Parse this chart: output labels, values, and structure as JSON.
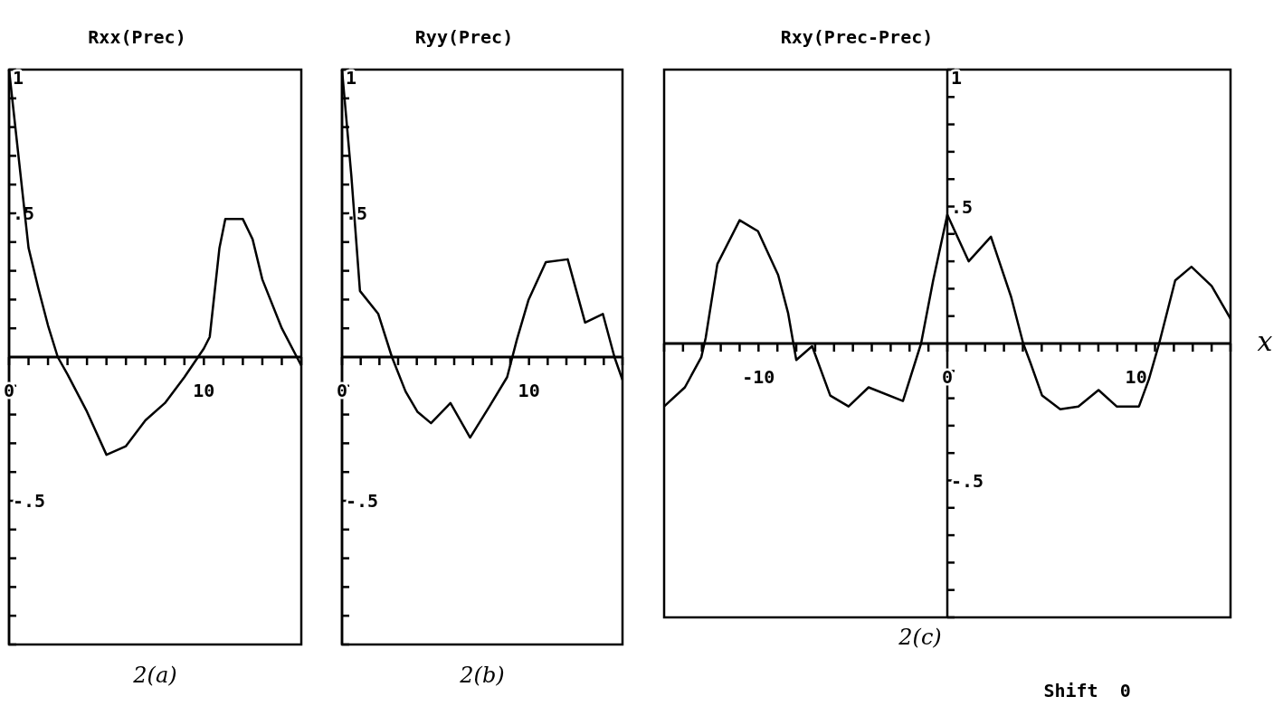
{
  "chart_data": [
    {
      "type": "line",
      "title": "Rxx(Prec)",
      "xlim": [
        0,
        15
      ],
      "ylim": [
        -1,
        1
      ],
      "xticks": [
        {
          "value": 0,
          "label": "0"
        },
        {
          "value": 1,
          "label": null
        },
        {
          "value": 2,
          "label": null
        },
        {
          "value": 3,
          "label": null
        },
        {
          "value": 4,
          "label": null
        },
        {
          "value": 5,
          "label": null
        },
        {
          "value": 6,
          "label": null
        },
        {
          "value": 7,
          "label": null
        },
        {
          "value": 8,
          "label": null
        },
        {
          "value": 9,
          "label": null
        },
        {
          "value": 10,
          "label": "10"
        },
        {
          "value": 11,
          "label": null
        },
        {
          "value": 12,
          "label": null
        },
        {
          "value": 13,
          "label": null
        },
        {
          "value": 14,
          "label": null
        },
        {
          "value": 15,
          "label": null
        }
      ],
      "yticks": [
        {
          "value": -1,
          "label": null
        },
        {
          "value": -0.9,
          "label": null
        },
        {
          "value": -0.8,
          "label": null
        },
        {
          "value": -0.7,
          "label": null
        },
        {
          "value": -0.6,
          "label": null
        },
        {
          "value": -0.5,
          "label": "-.5"
        },
        {
          "value": -0.4,
          "label": null
        },
        {
          "value": -0.3,
          "label": null
        },
        {
          "value": -0.2,
          "label": null
        },
        {
          "value": -0.1,
          "label": null
        },
        {
          "value": 0.1,
          "label": null
        },
        {
          "value": 0.2,
          "label": null
        },
        {
          "value": 0.3,
          "label": null
        },
        {
          "value": 0.4,
          "label": null
        },
        {
          "value": 0.5,
          "label": ".5"
        },
        {
          "value": 0.6,
          "label": null
        },
        {
          "value": 0.7,
          "label": null
        },
        {
          "value": 0.8,
          "label": null
        },
        {
          "value": 0.9,
          "label": null
        },
        {
          "value": 1,
          "label": "1"
        }
      ],
      "series": [
        {
          "color": "#000000",
          "x": [
            0,
            0.5,
            1,
            1.5,
            2,
            2.5,
            3,
            4,
            5,
            6,
            7,
            8,
            9,
            10,
            10.3,
            10.8,
            11.1,
            12,
            12.5,
            13,
            14,
            15
          ],
          "values": [
            1,
            0.69,
            0.38,
            0.24,
            0.11,
            0,
            -0.06,
            -0.19,
            -0.34,
            -0.31,
            -0.22,
            -0.16,
            -0.07,
            0.03,
            0.07,
            0.38,
            0.48,
            0.48,
            0.41,
            0.27,
            0.1,
            -0.03
          ]
        }
      ],
      "annotations": [
        "2(a)"
      ]
    },
    {
      "type": "line",
      "title": "Ryy(Prec)",
      "xlim": [
        0,
        15
      ],
      "ylim": [
        -1,
        1
      ],
      "xticks": [
        {
          "value": 0,
          "label": "0"
        },
        {
          "value": 1,
          "label": null
        },
        {
          "value": 2,
          "label": null
        },
        {
          "value": 3,
          "label": null
        },
        {
          "value": 4,
          "label": null
        },
        {
          "value": 5,
          "label": null
        },
        {
          "value": 6,
          "label": null
        },
        {
          "value": 7,
          "label": null
        },
        {
          "value": 8,
          "label": null
        },
        {
          "value": 9,
          "label": null
        },
        {
          "value": 10,
          "label": "10"
        },
        {
          "value": 11,
          "label": null
        },
        {
          "value": 12,
          "label": null
        },
        {
          "value": 13,
          "label": null
        },
        {
          "value": 14,
          "label": null
        },
        {
          "value": 15,
          "label": null
        }
      ],
      "yticks": [
        {
          "value": -1,
          "label": null
        },
        {
          "value": -0.9,
          "label": null
        },
        {
          "value": -0.8,
          "label": null
        },
        {
          "value": -0.7,
          "label": null
        },
        {
          "value": -0.6,
          "label": null
        },
        {
          "value": -0.5,
          "label": "-.5"
        },
        {
          "value": -0.4,
          "label": null
        },
        {
          "value": -0.3,
          "label": null
        },
        {
          "value": -0.2,
          "label": null
        },
        {
          "value": -0.1,
          "label": null
        },
        {
          "value": 0.1,
          "label": null
        },
        {
          "value": 0.2,
          "label": null
        },
        {
          "value": 0.3,
          "label": null
        },
        {
          "value": 0.4,
          "label": null
        },
        {
          "value": 0.5,
          "label": ".5"
        },
        {
          "value": 0.6,
          "label": null
        },
        {
          "value": 0.7,
          "label": null
        },
        {
          "value": 0.8,
          "label": null
        },
        {
          "value": 0.9,
          "label": null
        },
        {
          "value": 1,
          "label": "1"
        }
      ],
      "series": [
        {
          "color": "#000000",
          "x": [
            0,
            0.5,
            0.96,
            1.94,
            2.67,
            3.4,
            4.03,
            4.76,
            5.8,
            6.85,
            7.9,
            8.83,
            9.35,
            9.98,
            10.9,
            12.07,
            13,
            13.95,
            14.57,
            15
          ],
          "values": [
            1,
            0.63,
            0.23,
            0.15,
            0,
            -0.12,
            -0.19,
            -0.23,
            -0.16,
            -0.28,
            -0.17,
            -0.07,
            0.06,
            0.2,
            0.33,
            0.34,
            0.12,
            0.15,
            0,
            -0.08
          ]
        }
      ],
      "annotations": [
        "2(b)"
      ]
    },
    {
      "type": "line",
      "title": "Rxy(Prec-Prec)",
      "xlabel": "x",
      "xlim": [
        -15,
        15
      ],
      "ylim": [
        -1,
        1
      ],
      "xticks": [
        {
          "value": -15,
          "label": null
        },
        {
          "value": -14,
          "label": null
        },
        {
          "value": -13,
          "label": null
        },
        {
          "value": -12,
          "label": null
        },
        {
          "value": -11,
          "label": null
        },
        {
          "value": -10,
          "label": "-10"
        },
        {
          "value": -9,
          "label": null
        },
        {
          "value": -8,
          "label": null
        },
        {
          "value": -7,
          "label": null
        },
        {
          "value": -6,
          "label": null
        },
        {
          "value": -5,
          "label": null
        },
        {
          "value": -4,
          "label": null
        },
        {
          "value": -3,
          "label": null
        },
        {
          "value": -2,
          "label": null
        },
        {
          "value": -1,
          "label": null
        },
        {
          "value": 0,
          "label": "0"
        },
        {
          "value": 1,
          "label": null
        },
        {
          "value": 2,
          "label": null
        },
        {
          "value": 3,
          "label": null
        },
        {
          "value": 4,
          "label": null
        },
        {
          "value": 5,
          "label": null
        },
        {
          "value": 6,
          "label": null
        },
        {
          "value": 7,
          "label": null
        },
        {
          "value": 8,
          "label": null
        },
        {
          "value": 9,
          "label": null
        },
        {
          "value": 10,
          "label": "10"
        },
        {
          "value": 11,
          "label": null
        },
        {
          "value": 12,
          "label": null
        },
        {
          "value": 13,
          "label": null
        },
        {
          "value": 14,
          "label": null
        },
        {
          "value": 15,
          "label": null
        }
      ],
      "yticks": [
        {
          "value": -1,
          "label": null
        },
        {
          "value": -0.9,
          "label": null
        },
        {
          "value": -0.8,
          "label": null
        },
        {
          "value": -0.7,
          "label": null
        },
        {
          "value": -0.6,
          "label": null
        },
        {
          "value": -0.5,
          "label": "-.5"
        },
        {
          "value": -0.4,
          "label": null
        },
        {
          "value": -0.3,
          "label": null
        },
        {
          "value": -0.2,
          "label": null
        },
        {
          "value": -0.1,
          "label": null
        },
        {
          "value": 0.1,
          "label": null
        },
        {
          "value": 0.2,
          "label": null
        },
        {
          "value": 0.3,
          "label": null
        },
        {
          "value": 0.4,
          "label": null
        },
        {
          "value": 0.5,
          "label": ".5"
        },
        {
          "value": 0.6,
          "label": null
        },
        {
          "value": 0.7,
          "label": null
        },
        {
          "value": 0.8,
          "label": null
        },
        {
          "value": 0.9,
          "label": null
        },
        {
          "value": 1,
          "label": "1"
        }
      ],
      "series": [
        {
          "color": "#000000",
          "x": [
            -15,
            -13.9,
            -13.03,
            -12.8,
            -12.18,
            -11,
            -10.03,
            -8.96,
            -8.43,
            -8,
            -7.16,
            -6.2,
            -5.23,
            -4.17,
            -2.35,
            -1.39,
            -0.75,
            0,
            1.13,
            2.31,
            3.38,
            4.02,
            4.4,
            5.02,
            5.98,
            6.94,
            8.01,
            8.97,
            10.15,
            10.68,
            11.22,
            12.07,
            12.93,
            14,
            15
          ],
          "values": [
            -0.23,
            -0.16,
            -0.05,
            0.02,
            0.29,
            0.45,
            0.41,
            0.25,
            0.11,
            -0.06,
            -0.01,
            -0.19,
            -0.23,
            -0.16,
            -0.21,
            0,
            0.23,
            0.47,
            0.3,
            0.39,
            0.17,
            0,
            -0.07,
            -0.19,
            -0.24,
            -0.23,
            -0.17,
            -0.23,
            -0.23,
            -0.13,
            0,
            0.23,
            0.28,
            0.21,
            0.09
          ]
        }
      ],
      "annotations": [
        "2(c)",
        "Shift  0"
      ]
    }
  ]
}
